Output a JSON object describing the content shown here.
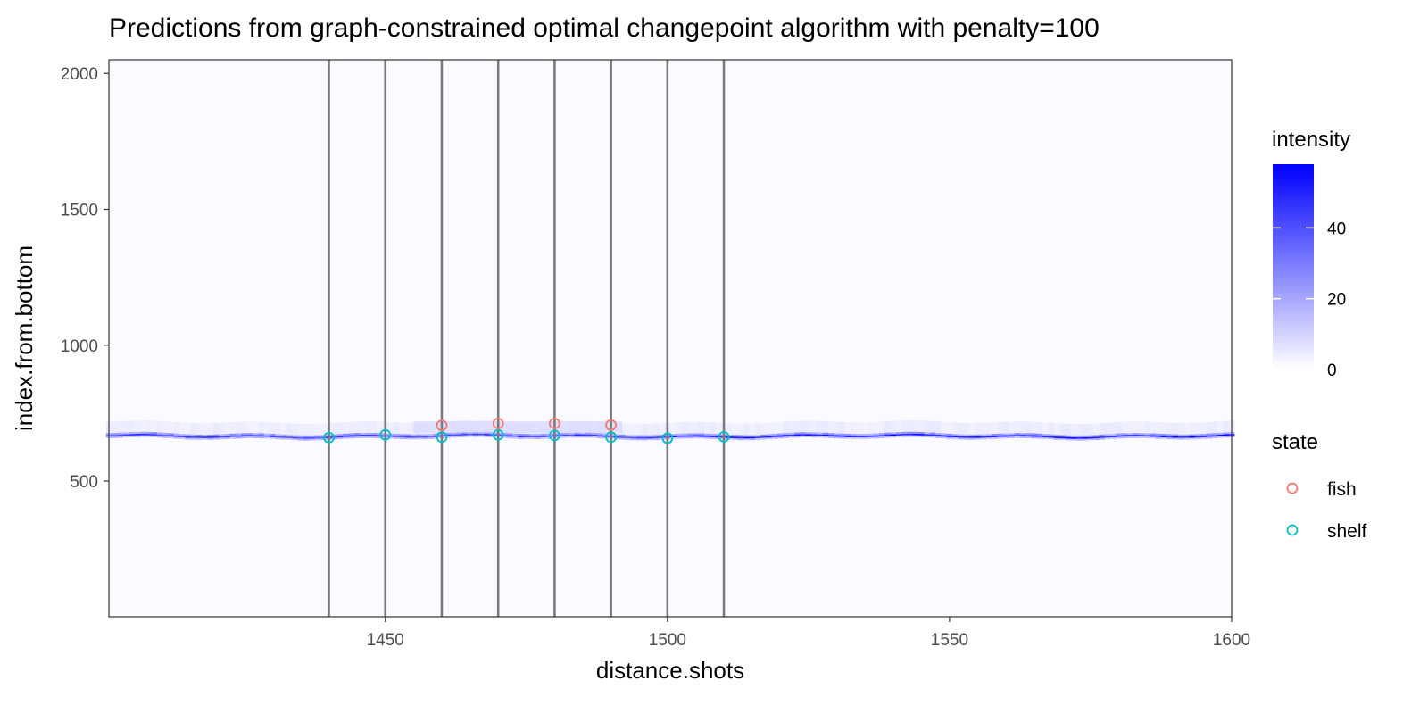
{
  "chart_data": {
    "type": "heatmap",
    "title": "Predictions from graph-constrained optimal changepoint algorithm with penalty=100",
    "xlabel": "distance.shots",
    "ylabel": "index.from.bottom",
    "xlim": [
      1401,
      1600
    ],
    "ylim": [
      1,
      2050
    ],
    "x_ticks": [
      1450,
      1500,
      1550,
      1600
    ],
    "y_ticks": [
      500,
      1000,
      1500,
      2000
    ],
    "grid": false,
    "heatmap": {
      "fill_legend_title": "intensity",
      "fill_legend_ticks": [
        0,
        20,
        40
      ],
      "fill_range": [
        0,
        58
      ],
      "color_low": "#ffffff",
      "color_high": "#0000ff",
      "background_level": 2,
      "band": {
        "description_levels": [
          2,
          58
        ],
        "center_y": 665,
        "peak_intensity": 55
      }
    },
    "changepoints_x": [
      1440,
      1450,
      1460,
      1470,
      1480,
      1490,
      1500,
      1510
    ],
    "legend": {
      "title": "state",
      "position": "right"
    },
    "series": [
      {
        "name": "fish",
        "color": "#f8766d",
        "points": [
          {
            "x": 1460,
            "y": 705
          },
          {
            "x": 1470,
            "y": 712
          },
          {
            "x": 1480,
            "y": 712
          },
          {
            "x": 1490,
            "y": 706
          }
        ]
      },
      {
        "name": "shelf",
        "color": "#00bfc4",
        "points": [
          {
            "x": 1440,
            "y": 660
          },
          {
            "x": 1450,
            "y": 670
          },
          {
            "x": 1460,
            "y": 662
          },
          {
            "x": 1470,
            "y": 670
          },
          {
            "x": 1480,
            "y": 668
          },
          {
            "x": 1490,
            "y": 662
          },
          {
            "x": 1500,
            "y": 658
          },
          {
            "x": 1510,
            "y": 663
          }
        ]
      }
    ]
  }
}
